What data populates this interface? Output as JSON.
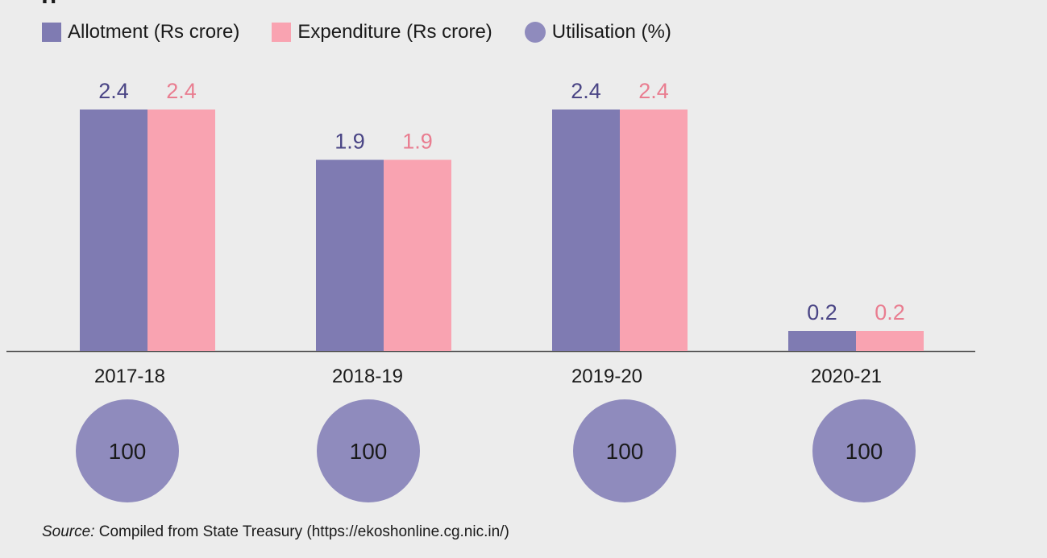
{
  "heading_fragment": "g",
  "legend": {
    "allotment_label": "Allotment (Rs crore)",
    "expenditure_label": "Expenditure (Rs crore)",
    "utilisation_label": "Utilisation (%)"
  },
  "colors": {
    "allotment": "#7f7bb2",
    "expenditure": "#f9a3b1",
    "allotment_label": "#4a4585",
    "expenditure_label": "#e97d90",
    "utilisation": "#8f8bbd",
    "axis": "#555555",
    "text": "#1a1a1a"
  },
  "chart_data": {
    "type": "bar",
    "categories": [
      "2017-18",
      "2018-19",
      "2019-20",
      "2020-21"
    ],
    "series": [
      {
        "name": "Allotment (Rs crore)",
        "values": [
          2.4,
          1.9,
          2.4,
          0.2
        ]
      },
      {
        "name": "Expenditure (Rs crore)",
        "values": [
          2.4,
          1.9,
          2.4,
          0.2
        ]
      }
    ],
    "utilisation": {
      "name": "Utilisation (%)",
      "values": [
        100,
        100,
        100,
        100
      ]
    },
    "ylim": [
      0,
      2.7
    ],
    "grid": false,
    "legend_position": "top-left"
  },
  "source": {
    "prefix": "Source:",
    "text": " Compiled from State Treasury (https://ekoshonline.cg.nic.in/)"
  }
}
